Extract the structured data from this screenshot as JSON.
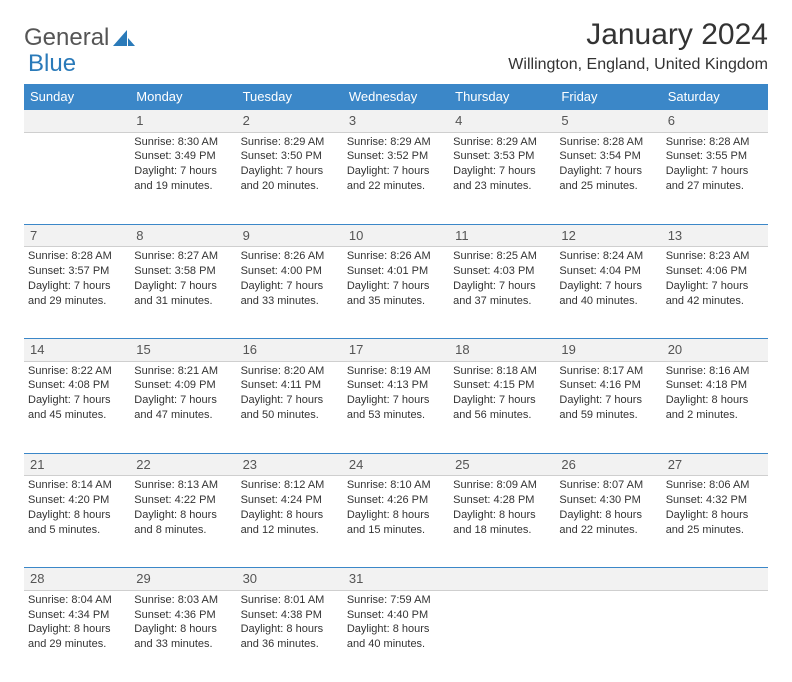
{
  "brand": {
    "part1": "General",
    "part2": "Blue"
  },
  "title": "January 2024",
  "subtitle": "Willington, England, United Kingdom",
  "colors": {
    "header_bg": "#3b87c8",
    "header_text": "#ffffff",
    "row_divider": "#3b87c8",
    "daynum_bg": "#f2f2f2",
    "daynum_border": "#cfcfcf",
    "body_text": "#333333",
    "logo_gray": "#555555",
    "logo_blue": "#2a7ab9"
  },
  "daysOfWeek": [
    "Sunday",
    "Monday",
    "Tuesday",
    "Wednesday",
    "Thursday",
    "Friday",
    "Saturday"
  ],
  "weeks": [
    {
      "nums": [
        "",
        "1",
        "2",
        "3",
        "4",
        "5",
        "6"
      ],
      "cells": [
        null,
        {
          "sunrise": "Sunrise: 8:30 AM",
          "sunset": "Sunset: 3:49 PM",
          "d1": "Daylight: 7 hours",
          "d2": "and 19 minutes."
        },
        {
          "sunrise": "Sunrise: 8:29 AM",
          "sunset": "Sunset: 3:50 PM",
          "d1": "Daylight: 7 hours",
          "d2": "and 20 minutes."
        },
        {
          "sunrise": "Sunrise: 8:29 AM",
          "sunset": "Sunset: 3:52 PM",
          "d1": "Daylight: 7 hours",
          "d2": "and 22 minutes."
        },
        {
          "sunrise": "Sunrise: 8:29 AM",
          "sunset": "Sunset: 3:53 PM",
          "d1": "Daylight: 7 hours",
          "d2": "and 23 minutes."
        },
        {
          "sunrise": "Sunrise: 8:28 AM",
          "sunset": "Sunset: 3:54 PM",
          "d1": "Daylight: 7 hours",
          "d2": "and 25 minutes."
        },
        {
          "sunrise": "Sunrise: 8:28 AM",
          "sunset": "Sunset: 3:55 PM",
          "d1": "Daylight: 7 hours",
          "d2": "and 27 minutes."
        }
      ]
    },
    {
      "nums": [
        "7",
        "8",
        "9",
        "10",
        "11",
        "12",
        "13"
      ],
      "cells": [
        {
          "sunrise": "Sunrise: 8:28 AM",
          "sunset": "Sunset: 3:57 PM",
          "d1": "Daylight: 7 hours",
          "d2": "and 29 minutes."
        },
        {
          "sunrise": "Sunrise: 8:27 AM",
          "sunset": "Sunset: 3:58 PM",
          "d1": "Daylight: 7 hours",
          "d2": "and 31 minutes."
        },
        {
          "sunrise": "Sunrise: 8:26 AM",
          "sunset": "Sunset: 4:00 PM",
          "d1": "Daylight: 7 hours",
          "d2": "and 33 minutes."
        },
        {
          "sunrise": "Sunrise: 8:26 AM",
          "sunset": "Sunset: 4:01 PM",
          "d1": "Daylight: 7 hours",
          "d2": "and 35 minutes."
        },
        {
          "sunrise": "Sunrise: 8:25 AM",
          "sunset": "Sunset: 4:03 PM",
          "d1": "Daylight: 7 hours",
          "d2": "and 37 minutes."
        },
        {
          "sunrise": "Sunrise: 8:24 AM",
          "sunset": "Sunset: 4:04 PM",
          "d1": "Daylight: 7 hours",
          "d2": "and 40 minutes."
        },
        {
          "sunrise": "Sunrise: 8:23 AM",
          "sunset": "Sunset: 4:06 PM",
          "d1": "Daylight: 7 hours",
          "d2": "and 42 minutes."
        }
      ]
    },
    {
      "nums": [
        "14",
        "15",
        "16",
        "17",
        "18",
        "19",
        "20"
      ],
      "cells": [
        {
          "sunrise": "Sunrise: 8:22 AM",
          "sunset": "Sunset: 4:08 PM",
          "d1": "Daylight: 7 hours",
          "d2": "and 45 minutes."
        },
        {
          "sunrise": "Sunrise: 8:21 AM",
          "sunset": "Sunset: 4:09 PM",
          "d1": "Daylight: 7 hours",
          "d2": "and 47 minutes."
        },
        {
          "sunrise": "Sunrise: 8:20 AM",
          "sunset": "Sunset: 4:11 PM",
          "d1": "Daylight: 7 hours",
          "d2": "and 50 minutes."
        },
        {
          "sunrise": "Sunrise: 8:19 AM",
          "sunset": "Sunset: 4:13 PM",
          "d1": "Daylight: 7 hours",
          "d2": "and 53 minutes."
        },
        {
          "sunrise": "Sunrise: 8:18 AM",
          "sunset": "Sunset: 4:15 PM",
          "d1": "Daylight: 7 hours",
          "d2": "and 56 minutes."
        },
        {
          "sunrise": "Sunrise: 8:17 AM",
          "sunset": "Sunset: 4:16 PM",
          "d1": "Daylight: 7 hours",
          "d2": "and 59 minutes."
        },
        {
          "sunrise": "Sunrise: 8:16 AM",
          "sunset": "Sunset: 4:18 PM",
          "d1": "Daylight: 8 hours",
          "d2": "and 2 minutes."
        }
      ]
    },
    {
      "nums": [
        "21",
        "22",
        "23",
        "24",
        "25",
        "26",
        "27"
      ],
      "cells": [
        {
          "sunrise": "Sunrise: 8:14 AM",
          "sunset": "Sunset: 4:20 PM",
          "d1": "Daylight: 8 hours",
          "d2": "and 5 minutes."
        },
        {
          "sunrise": "Sunrise: 8:13 AM",
          "sunset": "Sunset: 4:22 PM",
          "d1": "Daylight: 8 hours",
          "d2": "and 8 minutes."
        },
        {
          "sunrise": "Sunrise: 8:12 AM",
          "sunset": "Sunset: 4:24 PM",
          "d1": "Daylight: 8 hours",
          "d2": "and 12 minutes."
        },
        {
          "sunrise": "Sunrise: 8:10 AM",
          "sunset": "Sunset: 4:26 PM",
          "d1": "Daylight: 8 hours",
          "d2": "and 15 minutes."
        },
        {
          "sunrise": "Sunrise: 8:09 AM",
          "sunset": "Sunset: 4:28 PM",
          "d1": "Daylight: 8 hours",
          "d2": "and 18 minutes."
        },
        {
          "sunrise": "Sunrise: 8:07 AM",
          "sunset": "Sunset: 4:30 PM",
          "d1": "Daylight: 8 hours",
          "d2": "and 22 minutes."
        },
        {
          "sunrise": "Sunrise: 8:06 AM",
          "sunset": "Sunset: 4:32 PM",
          "d1": "Daylight: 8 hours",
          "d2": "and 25 minutes."
        }
      ]
    },
    {
      "nums": [
        "28",
        "29",
        "30",
        "31",
        "",
        "",
        ""
      ],
      "cells": [
        {
          "sunrise": "Sunrise: 8:04 AM",
          "sunset": "Sunset: 4:34 PM",
          "d1": "Daylight: 8 hours",
          "d2": "and 29 minutes."
        },
        {
          "sunrise": "Sunrise: 8:03 AM",
          "sunset": "Sunset: 4:36 PM",
          "d1": "Daylight: 8 hours",
          "d2": "and 33 minutes."
        },
        {
          "sunrise": "Sunrise: 8:01 AM",
          "sunset": "Sunset: 4:38 PM",
          "d1": "Daylight: 8 hours",
          "d2": "and 36 minutes."
        },
        {
          "sunrise": "Sunrise: 7:59 AM",
          "sunset": "Sunset: 4:40 PM",
          "d1": "Daylight: 8 hours",
          "d2": "and 40 minutes."
        },
        null,
        null,
        null
      ]
    }
  ]
}
